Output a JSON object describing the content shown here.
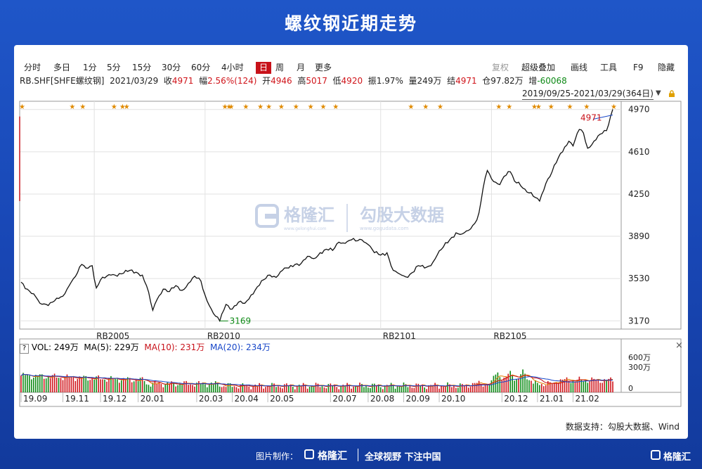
{
  "title": "螺纹钢近期走势",
  "toolbar": {
    "items": [
      "分时",
      "多日",
      "1分",
      "5分",
      "15分",
      "30分",
      "60分",
      "4小时",
      "日",
      "周",
      "月",
      "更多"
    ],
    "active": "日",
    "right_items": [
      "复权",
      "超级叠加",
      "画线",
      "工具",
      "F9",
      "隐藏"
    ]
  },
  "info": {
    "code": "RB.SHF[SHFE螺纹钢]",
    "date": "2021/03/29",
    "close_label": "收",
    "close": "4971",
    "chg_label": "幅",
    "chg": "2.56%(124)",
    "open_label": "开",
    "open": "4946",
    "high_label": "高",
    "high": "5017",
    "low_label": "低",
    "low": "4920",
    "amp_label": "振",
    "amp": "1.97%",
    "vol_label": "量",
    "vol": "249万",
    "settle_label": "结",
    "settle": "4971",
    "oi_label": "仓",
    "oi": "97.82万",
    "oichg_label": "增",
    "oichg": "-60068"
  },
  "range_text": "2019/09/25-2021/03/29(364日)",
  "vol_panel": {
    "help": "?",
    "vol": "VOL: 249万",
    "ma5": "MA(5): 229万",
    "ma10": "MA(10): 231万",
    "ma20": "MA(20): 234万",
    "close": "×"
  },
  "watermark": {
    "brand": "格隆汇",
    "brand_url": "www.gelonghui.com",
    "brand2": "勾股大数据",
    "brand2_url": "www.gogudata.com"
  },
  "source": "数据支持：勾股大数据、Wind",
  "footer": {
    "made_by": "图片制作：",
    "brand": "格隆汇",
    "slogan": "全球视野 下注中国",
    "corner_brand": "格隆汇"
  },
  "colors": {
    "accent_red": "#c8121a",
    "ma5": "#e07b00",
    "ma10": "#c8121a",
    "ma20": "#1746c8",
    "up": "#d0141a",
    "down": "#0e8a16"
  },
  "chart_data": {
    "type": "line",
    "y_ticks": [
      3170,
      3530,
      3890,
      4250,
      4610,
      4970
    ],
    "ylim": [
      3100,
      5040
    ],
    "contract_labels": [
      {
        "label": "RB2005",
        "i": 35
      },
      {
        "label": "RB2010",
        "i": 88
      },
      {
        "label": "RB2101",
        "i": 172
      },
      {
        "label": "RB2105",
        "i": 225
      }
    ],
    "x_ticks": [
      {
        "label": "19.09",
        "i": 0
      },
      {
        "label": "19.11",
        "i": 20
      },
      {
        "label": "19.12",
        "i": 38
      },
      {
        "label": "20.01",
        "i": 56
      },
      {
        "label": "20.03",
        "i": 84
      },
      {
        "label": "20.04",
        "i": 101
      },
      {
        "label": "20.05",
        "i": 118
      },
      {
        "label": "20.07",
        "i": 148
      },
      {
        "label": "20.08",
        "i": 166
      },
      {
        "label": "20.09",
        "i": 183
      },
      {
        "label": "20.10",
        "i": 200
      },
      {
        "label": "20.12",
        "i": 230
      },
      {
        "label": "21.01",
        "i": 247
      },
      {
        "label": "21.02",
        "i": 264
      }
    ],
    "annotations": [
      {
        "text": "3169",
        "value": 3169,
        "i": 95
      },
      {
        "text": "4971",
        "value": 4971,
        "i": 283
      }
    ],
    "event_markers": [
      0,
      24,
      29,
      44,
      48,
      50,
      97,
      99,
      100,
      107,
      114,
      118,
      124,
      131,
      138,
      144,
      150,
      186,
      193,
      200,
      228,
      233,
      245,
      247,
      253,
      262,
      270,
      283
    ],
    "anchors": [
      [
        0,
        3500
      ],
      [
        3,
        3440
      ],
      [
        6,
        3400
      ],
      [
        9,
        3320
      ],
      [
        12,
        3310
      ],
      [
        16,
        3340
      ],
      [
        20,
        3380
      ],
      [
        24,
        3500
      ],
      [
        27,
        3580
      ],
      [
        29,
        3650
      ],
      [
        31,
        3620
      ],
      [
        34,
        3640
      ],
      [
        36,
        3450
      ],
      [
        38,
        3520
      ],
      [
        43,
        3560
      ],
      [
        48,
        3570
      ],
      [
        52,
        3600
      ],
      [
        56,
        3575
      ],
      [
        58,
        3560
      ],
      [
        60,
        3470
      ],
      [
        63,
        3260
      ],
      [
        65,
        3350
      ],
      [
        68,
        3440
      ],
      [
        71,
        3420
      ],
      [
        74,
        3470
      ],
      [
        77,
        3430
      ],
      [
        80,
        3490
      ],
      [
        83,
        3550
      ],
      [
        86,
        3510
      ],
      [
        88,
        3390
      ],
      [
        91,
        3270
      ],
      [
        93,
        3210
      ],
      [
        95,
        3169
      ],
      [
        98,
        3310
      ],
      [
        101,
        3270
      ],
      [
        104,
        3330
      ],
      [
        107,
        3320
      ],
      [
        110,
        3390
      ],
      [
        113,
        3460
      ],
      [
        116,
        3520
      ],
      [
        119,
        3560
      ],
      [
        122,
        3540
      ],
      [
        125,
        3600
      ],
      [
        128,
        3620
      ],
      [
        131,
        3650
      ],
      [
        134,
        3660
      ],
      [
        137,
        3720
      ],
      [
        140,
        3700
      ],
      [
        143,
        3750
      ],
      [
        146,
        3780
      ],
      [
        149,
        3770
      ],
      [
        152,
        3840
      ],
      [
        155,
        3830
      ],
      [
        158,
        3860
      ],
      [
        160,
        3850
      ],
      [
        163,
        3860
      ],
      [
        166,
        3820
      ],
      [
        169,
        3750
      ],
      [
        172,
        3730
      ],
      [
        175,
        3750
      ],
      [
        178,
        3600
      ],
      [
        181,
        3570
      ],
      [
        184,
        3545
      ],
      [
        187,
        3580
      ],
      [
        190,
        3640
      ],
      [
        193,
        3620
      ],
      [
        196,
        3640
      ],
      [
        199,
        3730
      ],
      [
        202,
        3800
      ],
      [
        205,
        3860
      ],
      [
        208,
        3920
      ],
      [
        211,
        3910
      ],
      [
        214,
        3940
      ],
      [
        217,
        4000
      ],
      [
        219,
        4090
      ],
      [
        221,
        4300
      ],
      [
        223,
        4450
      ],
      [
        225,
        4380
      ],
      [
        227,
        4350
      ],
      [
        229,
        4330
      ],
      [
        231,
        4400
      ],
      [
        234,
        4440
      ],
      [
        236,
        4360
      ],
      [
        238,
        4350
      ],
      [
        240,
        4300
      ],
      [
        243,
        4260
      ],
      [
        246,
        4220
      ],
      [
        248,
        4190
      ],
      [
        251,
        4340
      ],
      [
        254,
        4440
      ],
      [
        257,
        4560
      ],
      [
        260,
        4650
      ],
      [
        262,
        4700
      ],
      [
        264,
        4660
      ],
      [
        267,
        4800
      ],
      [
        269,
        4770
      ],
      [
        271,
        4640
      ],
      [
        274,
        4700
      ],
      [
        277,
        4760
      ],
      [
        280,
        4790
      ],
      [
        283,
        4971
      ]
    ],
    "volume_axis": {
      "ticks": [
        "600万",
        "300万",
        "0"
      ],
      "max_wan": 750
    }
  }
}
